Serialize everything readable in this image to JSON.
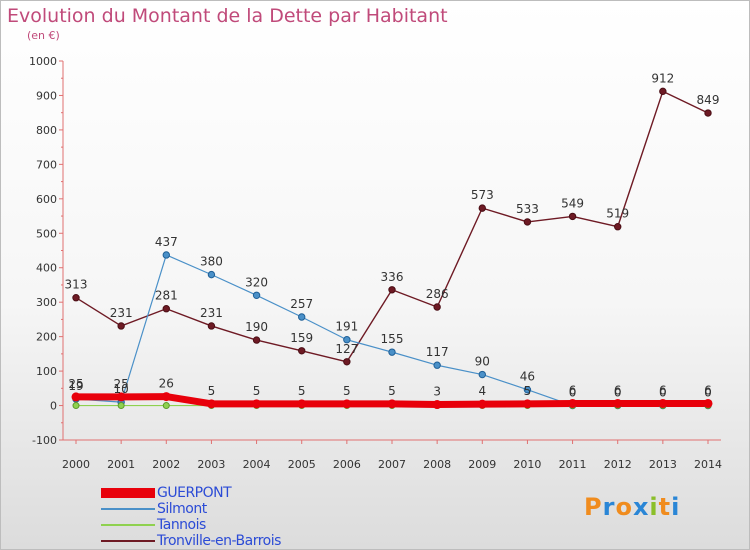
{
  "header": {
    "title": "Evolution du Montant de la Dette par Habitant",
    "unit": "(en €)"
  },
  "logo": {
    "text": "Proxiti",
    "letter_colors": [
      "#f08c1e",
      "#2a86d6",
      "#f08c1e",
      "#2a86d6",
      "#8bbf2a",
      "#f08c1e",
      "#2a86d6"
    ]
  },
  "chart_data": {
    "type": "line",
    "title": "Evolution du Montant de la Dette par Habitant",
    "ylabel": "(en €)",
    "xlabel": "",
    "x": [
      2000,
      2001,
      2002,
      2003,
      2004,
      2005,
      2006,
      2007,
      2008,
      2009,
      2010,
      2011,
      2012,
      2013,
      2014
    ],
    "ylim": [
      -100,
      1000
    ],
    "yticks": [
      -100,
      0,
      100,
      200,
      300,
      400,
      500,
      600,
      700,
      800,
      900,
      1000
    ],
    "grid": false,
    "legend_position": "bottom-left",
    "series": [
      {
        "name": "GUERPONT",
        "color": "#e8000b",
        "values": [
          25,
          25,
          26,
          5,
          5,
          5,
          5,
          5,
          3,
          4,
          5,
          6,
          6,
          6,
          6
        ],
        "labels": [
          "25",
          "25",
          "26",
          "5",
          "5",
          "5",
          "5",
          "5",
          "3",
          "4",
          "5",
          "6",
          "6",
          "6",
          "6"
        ]
      },
      {
        "name": "Silmont",
        "color": "#4a90c8",
        "values": [
          19,
          10,
          437,
          380,
          320,
          257,
          191,
          155,
          117,
          90,
          46,
          0,
          0,
          0,
          0
        ],
        "labels": [
          "19",
          "10",
          "437",
          "380",
          "320",
          "257",
          "191",
          "155",
          "117",
          "90",
          "46",
          "0",
          "0",
          "0",
          "0"
        ]
      },
      {
        "name": "Tannois",
        "color": "#8fd14f",
        "values": [
          0,
          0,
          0,
          0,
          0,
          0,
          0,
          0,
          0,
          0,
          0,
          0,
          0,
          0,
          0
        ],
        "labels": []
      },
      {
        "name": "Tronville-en-Barrois",
        "color": "#6e1a24",
        "values": [
          313,
          231,
          281,
          231,
          190,
          159,
          127,
          336,
          286,
          573,
          533,
          549,
          519,
          912,
          849
        ],
        "labels": [
          "313",
          "231",
          "281",
          "231",
          "190",
          "159",
          "127",
          "336",
          "286",
          "573",
          "533",
          "549",
          "519",
          "912",
          "849"
        ]
      }
    ]
  }
}
